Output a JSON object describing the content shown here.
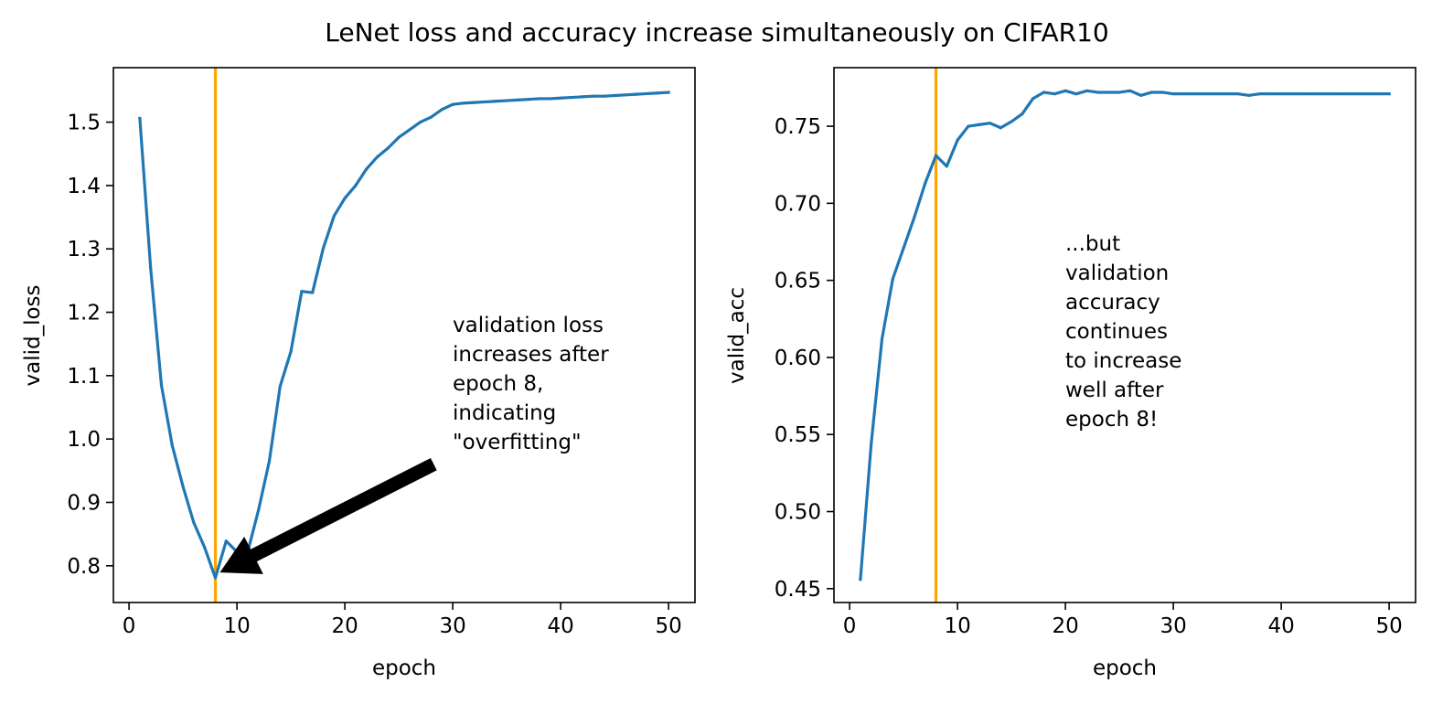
{
  "figure": {
    "title": "LeNet loss and accuracy increase simultaneously on CIFAR10"
  },
  "chart_data": [
    {
      "type": "line",
      "xlabel": "epoch",
      "ylabel": "valid_loss",
      "xlim": [
        -1.45,
        52.45
      ],
      "ylim": [
        0.742,
        1.586
      ],
      "xticks": [
        0,
        10,
        20,
        30,
        40,
        50
      ],
      "yticks": [
        0.8,
        0.9,
        1.0,
        1.1,
        1.2,
        1.3,
        1.4,
        1.5
      ],
      "grid": false,
      "line_color": "#1f77b4",
      "vline": {
        "x": 8,
        "color": "#ffa500"
      },
      "x": [
        1,
        2,
        3,
        4,
        5,
        6,
        7,
        8,
        9,
        10,
        11,
        12,
        13,
        14,
        15,
        16,
        17,
        18,
        19,
        20,
        21,
        22,
        23,
        24,
        25,
        26,
        27,
        28,
        29,
        30,
        31,
        32,
        33,
        34,
        35,
        36,
        37,
        38,
        39,
        40,
        41,
        42,
        43,
        44,
        45,
        46,
        47,
        48,
        49,
        50
      ],
      "y": [
        1.506,
        1.27,
        1.085,
        0.99,
        0.925,
        0.868,
        0.829,
        0.781,
        0.839,
        0.822,
        0.822,
        0.888,
        0.965,
        1.083,
        1.138,
        1.233,
        1.231,
        1.301,
        1.352,
        1.38,
        1.4,
        1.426,
        1.445,
        1.459,
        1.476,
        1.488,
        1.5,
        1.508,
        1.52,
        1.528,
        1.53,
        1.531,
        1.532,
        1.533,
        1.534,
        1.535,
        1.536,
        1.537,
        1.537,
        1.538,
        1.539,
        1.54,
        1.541,
        1.541,
        1.542,
        1.543,
        1.544,
        1.545,
        1.546,
        1.547
      ],
      "annotation": {
        "text": [
          "validation loss",
          "increases after",
          "epoch 8,",
          "indicating",
          "\"overfitting\""
        ],
        "text_at": [
          30,
          1.165
        ],
        "arrow_from": [
          28.2,
          0.96
        ],
        "arrow_to": [
          8.5,
          0.79
        ],
        "arrow_color": "#000000"
      }
    },
    {
      "type": "line",
      "xlabel": "epoch",
      "ylabel": "valid_acc",
      "xlim": [
        -1.45,
        52.45
      ],
      "ylim": [
        0.441,
        0.788
      ],
      "xticks": [
        0,
        10,
        20,
        30,
        40,
        50
      ],
      "yticks": [
        0.45,
        0.5,
        0.55,
        0.6,
        0.65,
        0.7,
        0.75
      ],
      "grid": false,
      "line_color": "#1f77b4",
      "vline": {
        "x": 8,
        "color": "#ffa500"
      },
      "x": [
        1,
        2,
        3,
        4,
        5,
        6,
        7,
        8,
        9,
        10,
        11,
        12,
        13,
        14,
        15,
        16,
        17,
        18,
        19,
        20,
        21,
        22,
        23,
        24,
        25,
        26,
        27,
        28,
        29,
        30,
        31,
        32,
        33,
        34,
        35,
        36,
        37,
        38,
        39,
        40,
        41,
        42,
        43,
        44,
        45,
        46,
        47,
        48,
        49,
        50
      ],
      "y": [
        0.456,
        0.544,
        0.612,
        0.651,
        0.671,
        0.691,
        0.713,
        0.731,
        0.724,
        0.741,
        0.75,
        0.751,
        0.752,
        0.749,
        0.753,
        0.758,
        0.768,
        0.772,
        0.771,
        0.773,
        0.771,
        0.773,
        0.772,
        0.772,
        0.772,
        0.773,
        0.77,
        0.772,
        0.772,
        0.771,
        0.771,
        0.771,
        0.771,
        0.771,
        0.771,
        0.771,
        0.77,
        0.771,
        0.771,
        0.771,
        0.771,
        0.771,
        0.771,
        0.771,
        0.771,
        0.771,
        0.771,
        0.771,
        0.771,
        0.771
      ],
      "annotation": {
        "text": [
          "...but",
          "validation",
          "accuracy",
          "continues",
          "to increase",
          "well after",
          "epoch 8!"
        ]
      }
    }
  ]
}
